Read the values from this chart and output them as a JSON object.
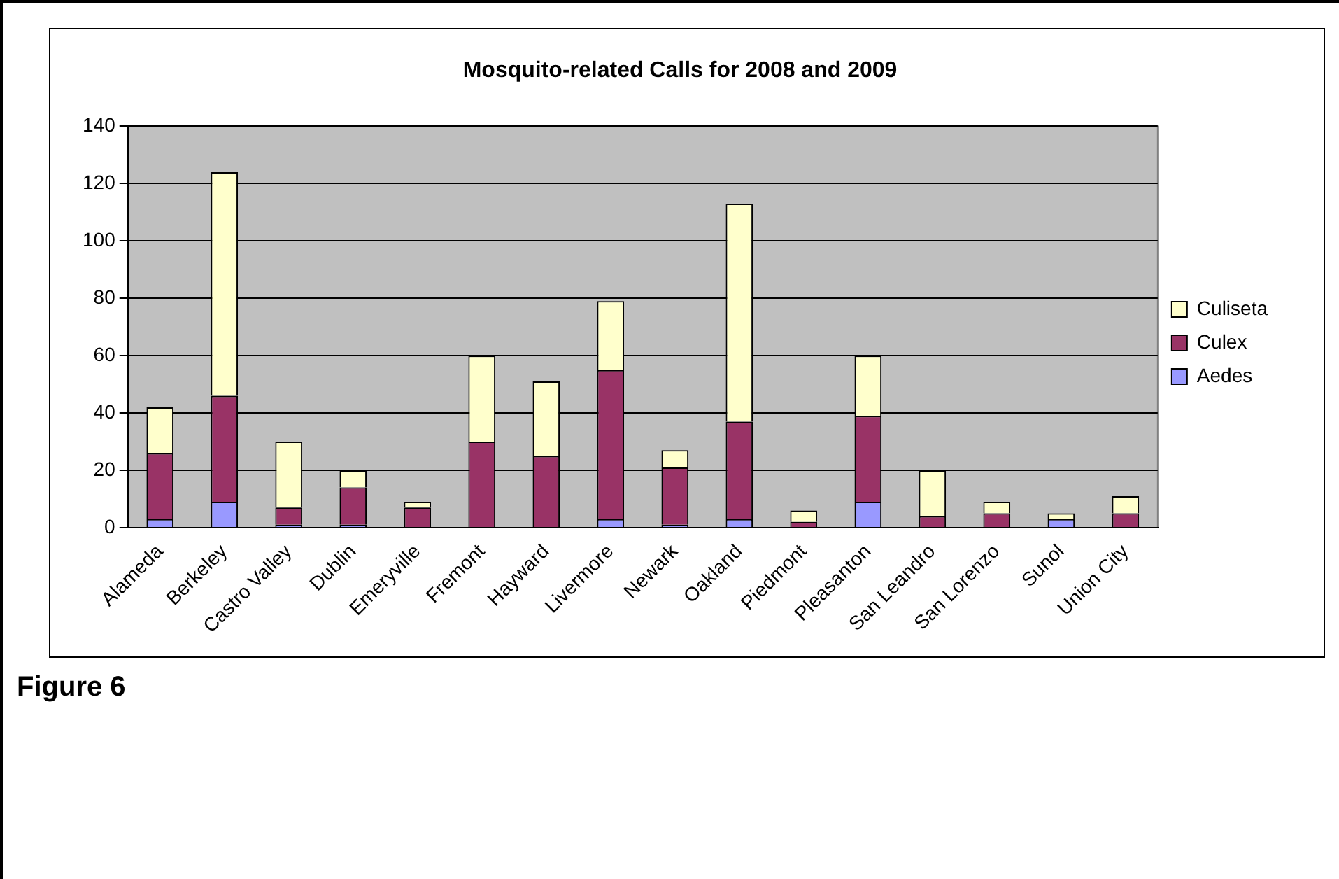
{
  "chart_data": {
    "type": "bar",
    "title": "Mosquito-related Calls for 2008 and 2009",
    "stacked": true,
    "categories": [
      "Alameda",
      "Berkeley",
      "Castro Valley",
      "Dublin",
      "Emeryville",
      "Fremont",
      "Hayward",
      "Livermore",
      "Newark",
      "Oakland",
      "Piedmont",
      "Pleasanton",
      "San Leandro",
      "San Lorenzo",
      "Sunol",
      "Union City"
    ],
    "series": [
      {
        "name": "Aedes",
        "color": "#9999ff",
        "values": [
          3,
          9,
          1,
          1,
          0,
          0,
          0,
          3,
          1,
          3,
          0,
          9,
          0,
          0,
          3,
          0
        ]
      },
      {
        "name": "Culex",
        "color": "#993366",
        "values": [
          23,
          37,
          6,
          13,
          7,
          30,
          25,
          52,
          20,
          34,
          2,
          30,
          4,
          5,
          0,
          5
        ]
      },
      {
        "name": "Culiseta",
        "color": "#ffffcc",
        "values": [
          16,
          78,
          23,
          6,
          2,
          30,
          26,
          24,
          6,
          76,
          4,
          21,
          16,
          4,
          2,
          6
        ]
      }
    ],
    "ylim": [
      0,
      140
    ],
    "yticks": [
      0,
      20,
      40,
      60,
      80,
      100,
      120,
      140
    ],
    "grid": "y",
    "legend": "right",
    "annotations": [
      "Figure 6"
    ]
  }
}
